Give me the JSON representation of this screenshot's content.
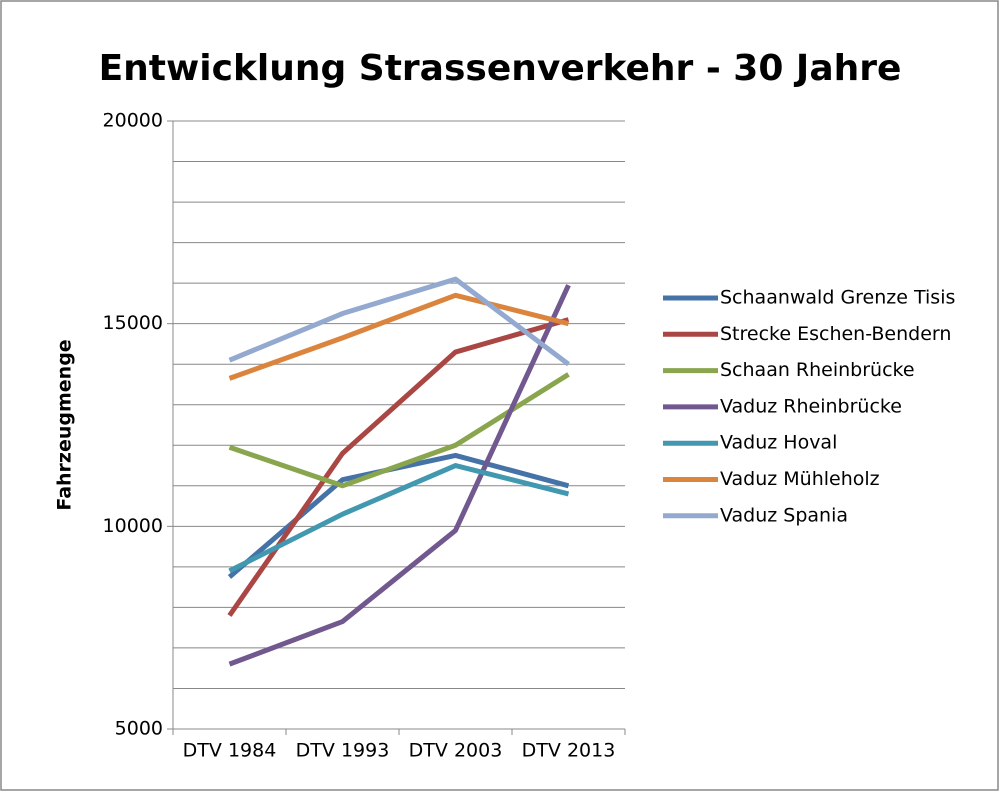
{
  "chart_data": {
    "type": "line",
    "title": "Entwicklung Strassenverkehr - 30 Jahre",
    "y_label": "Fahrzeugmenge",
    "categories": [
      "DTV 1984",
      "DTV 1993",
      "DTV 2003",
      "DTV 2013"
    ],
    "series": [
      {
        "name": "Schaanwald Grenze Tisis",
        "color": "#4572a7",
        "values": [
          8750,
          11150,
          11750,
          11000
        ]
      },
      {
        "name": "Strecke Eschen-Bendern",
        "color": "#aa4643",
        "values": [
          7800,
          11800,
          14300,
          15100
        ]
      },
      {
        "name": "Schaan Rheinbrücke",
        "color": "#89a54e",
        "values": [
          11950,
          11000,
          12000,
          13750
        ]
      },
      {
        "name": "Vaduz Rheinbrücke",
        "color": "#71588f",
        "values": [
          6600,
          7650,
          9900,
          15950
        ]
      },
      {
        "name": "Vaduz Hoval",
        "color": "#4198af",
        "values": [
          8900,
          10300,
          11500,
          10800
        ]
      },
      {
        "name": "Vaduz Mühleholz",
        "color": "#db843d",
        "values": [
          13650,
          14650,
          15700,
          15000
        ]
      },
      {
        "name": "Vaduz Spania",
        "color": "#93a9cf",
        "values": [
          14100,
          15250,
          16100,
          14000
        ]
      }
    ],
    "ylim": [
      5000,
      20000
    ],
    "yticks": [
      5000,
      10000,
      15000,
      20000
    ],
    "minor_yticks": [
      6000,
      7000,
      8000,
      9000,
      11000,
      12000,
      13000,
      14000,
      16000,
      17000,
      18000,
      19000
    ],
    "grid": true,
    "legend": "right"
  }
}
